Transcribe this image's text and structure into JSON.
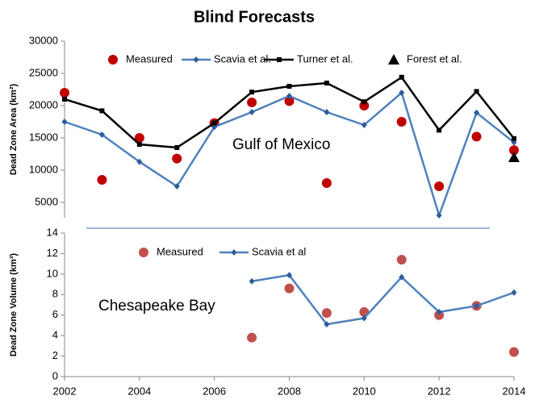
{
  "title": "Blind Forecasts",
  "chart_data": [
    {
      "type": "line",
      "ylabel": "Dead Zone Area (km²)",
      "annotation": "Gulf of Mexico",
      "x": [
        2002,
        2003,
        2004,
        2005,
        2006,
        2007,
        2008,
        2009,
        2010,
        2011,
        2012,
        2013,
        2014
      ],
      "xlim": [
        2002,
        2014
      ],
      "ylim": [
        1000,
        30000
      ],
      "yticks": [
        5000,
        10000,
        15000,
        20000,
        25000,
        30000
      ],
      "series": [
        {
          "name": "Measured",
          "color": "#c00000",
          "mode": "markers",
          "marker": "circle",
          "values": [
            22000,
            8500,
            15000,
            11800,
            17300,
            20500,
            20700,
            8000,
            20000,
            17500,
            7500,
            15200,
            13100
          ]
        },
        {
          "name": "Scavia et al.",
          "color": "#4f81bd",
          "mode": "lines+markers",
          "marker": "diamond",
          "values": [
            17500,
            15500,
            11300,
            7500,
            16700,
            19000,
            21500,
            19000,
            17000,
            22000,
            3000,
            18900,
            14300
          ]
        },
        {
          "name": "Turner et al.",
          "color": "#000000",
          "mode": "lines+markers",
          "marker": "square",
          "values": [
            21000,
            19200,
            14000,
            13500,
            17300,
            22100,
            23000,
            23500,
            20600,
            24400,
            16200,
            22200,
            14900
          ]
        },
        {
          "name": "Forest et al.",
          "color": "#000000",
          "mode": "markers",
          "marker": "triangle",
          "values": [
            null,
            null,
            null,
            null,
            null,
            null,
            null,
            null,
            null,
            null,
            null,
            null,
            12000
          ]
        }
      ]
    },
    {
      "type": "line",
      "ylabel": "Dead Zone Volume (km³)",
      "annotation": "Chesapeake Bay",
      "x": [
        2007,
        2008,
        2009,
        2010,
        2011,
        2012,
        2013,
        2014
      ],
      "xlim": [
        2002,
        2014
      ],
      "xticks": [
        2002,
        2004,
        2006,
        2008,
        2010,
        2012,
        2014
      ],
      "ylim": [
        0,
        14
      ],
      "yticks": [
        0,
        2,
        4,
        6,
        8,
        10,
        12,
        14
      ],
      "series": [
        {
          "name": "Measured",
          "color": "#c0504d",
          "mode": "markers",
          "marker": "circle",
          "values": [
            3.8,
            8.6,
            6.2,
            6.3,
            11.4,
            6.0,
            6.9,
            2.4
          ]
        },
        {
          "name": "Scavia et al",
          "color": "#4f81bd",
          "mode": "lines+markers",
          "marker": "diamond",
          "values": [
            9.3,
            9.9,
            5.1,
            5.7,
            9.7,
            6.3,
            6.9,
            8.2
          ]
        }
      ]
    }
  ]
}
